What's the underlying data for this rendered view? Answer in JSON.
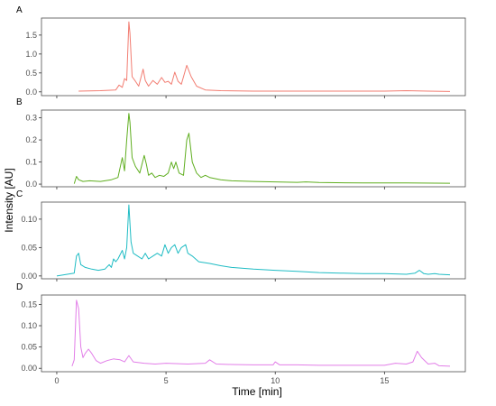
{
  "figure": {
    "ylabel": "Intensity [AU]",
    "xlabel": "Time [min]",
    "colors": {
      "A": "#f27d72",
      "B": "#5fae1f",
      "C": "#1fbcc4",
      "D": "#e27ee8",
      "axis": "#333333",
      "panel_border": "#4d4d4d"
    }
  },
  "chart_data": [
    {
      "type": "line",
      "panel": "A",
      "x_range": [
        0,
        18
      ],
      "ylim": [
        -0.1,
        1.95
      ],
      "yticks": [
        0.0,
        0.5,
        1.0,
        1.5
      ],
      "ytick_labels": [
        "0.0",
        "0.5",
        "1.0",
        "1.5"
      ],
      "grid": false,
      "line_color": "#f27d72",
      "series": [
        {
          "x": [
            1.0,
            2.0,
            2.7,
            2.85,
            3.0,
            3.1,
            3.2,
            3.3,
            3.35,
            3.45,
            3.6,
            3.75,
            3.95,
            4.05,
            4.2,
            4.4,
            4.6,
            4.8,
            4.95,
            5.1,
            5.25,
            5.4,
            5.55,
            5.7,
            5.95,
            6.15,
            6.4,
            6.8,
            7.5,
            9.0,
            11.0,
            13.0,
            15.0,
            16.0,
            17.0,
            18.0
          ],
          "y": [
            0.02,
            0.03,
            0.05,
            0.18,
            0.12,
            0.35,
            0.3,
            1.85,
            1.55,
            0.4,
            0.28,
            0.15,
            0.6,
            0.3,
            0.15,
            0.3,
            0.2,
            0.38,
            0.25,
            0.28,
            0.2,
            0.52,
            0.28,
            0.2,
            0.7,
            0.4,
            0.15,
            0.05,
            0.03,
            0.02,
            0.02,
            0.02,
            0.02,
            0.03,
            0.02,
            0.01
          ]
        }
      ]
    },
    {
      "type": "line",
      "panel": "B",
      "x_range": [
        0,
        18
      ],
      "ylim": [
        -0.012,
        0.335
      ],
      "yticks": [
        0.0,
        0.1,
        0.2,
        0.3
      ],
      "ytick_labels": [
        "0.0",
        "0.1",
        "0.2",
        "0.3"
      ],
      "grid": false,
      "line_color": "#5fae1f",
      "series": [
        {
          "x": [
            0.8,
            0.9,
            1.0,
            1.2,
            1.5,
            2.0,
            2.5,
            2.8,
            3.0,
            3.1,
            3.2,
            3.3,
            3.35,
            3.45,
            3.6,
            3.8,
            4.0,
            4.1,
            4.2,
            4.35,
            4.5,
            4.7,
            4.9,
            5.1,
            5.25,
            5.35,
            5.45,
            5.6,
            5.8,
            5.95,
            6.05,
            6.2,
            6.4,
            6.6,
            6.8,
            7.0,
            7.5,
            8.0,
            9.0,
            10.0,
            11.0,
            11.4,
            12.0,
            14.0,
            16.0,
            18.0
          ],
          "y": [
            0.002,
            0.035,
            0.02,
            0.012,
            0.015,
            0.012,
            0.02,
            0.03,
            0.12,
            0.06,
            0.2,
            0.32,
            0.28,
            0.12,
            0.08,
            0.05,
            0.13,
            0.09,
            0.04,
            0.05,
            0.03,
            0.04,
            0.035,
            0.05,
            0.1,
            0.07,
            0.1,
            0.05,
            0.04,
            0.2,
            0.23,
            0.1,
            0.05,
            0.03,
            0.04,
            0.03,
            0.02,
            0.015,
            0.012,
            0.01,
            0.008,
            0.01,
            0.007,
            0.005,
            0.005,
            0.004
          ]
        }
      ]
    },
    {
      "type": "line",
      "panel": "C",
      "x_range": [
        0,
        18
      ],
      "ylim": [
        -0.005,
        0.13
      ],
      "yticks": [
        0.0,
        0.05,
        0.1
      ],
      "ytick_labels": [
        "0.00",
        "0.05",
        "0.10"
      ],
      "grid": false,
      "line_color": "#1fbcc4",
      "series": [
        {
          "x": [
            0.0,
            0.8,
            0.9,
            1.0,
            1.1,
            1.3,
            1.6,
            1.9,
            2.2,
            2.4,
            2.5,
            2.6,
            2.7,
            2.8,
            3.0,
            3.1,
            3.2,
            3.3,
            3.4,
            3.5,
            3.7,
            3.9,
            4.05,
            4.2,
            4.4,
            4.6,
            4.8,
            4.95,
            5.1,
            5.25,
            5.4,
            5.55,
            5.7,
            5.9,
            6.0,
            6.2,
            6.5,
            7.0,
            7.5,
            8.0,
            9.0,
            10.0,
            11.0,
            12.0,
            13.0,
            14.0,
            15.0,
            16.0,
            16.4,
            16.6,
            16.8,
            17.0,
            17.3,
            17.5,
            18.0
          ],
          "y": [
            0.0,
            0.005,
            0.035,
            0.04,
            0.02,
            0.015,
            0.012,
            0.01,
            0.012,
            0.02,
            0.015,
            0.03,
            0.025,
            0.03,
            0.045,
            0.03,
            0.05,
            0.125,
            0.06,
            0.04,
            0.035,
            0.03,
            0.04,
            0.03,
            0.035,
            0.04,
            0.035,
            0.055,
            0.04,
            0.05,
            0.055,
            0.04,
            0.05,
            0.055,
            0.04,
            0.035,
            0.025,
            0.022,
            0.018,
            0.015,
            0.012,
            0.01,
            0.008,
            0.006,
            0.005,
            0.004,
            0.004,
            0.003,
            0.005,
            0.01,
            0.004,
            0.003,
            0.004,
            0.003,
            0.002
          ]
        }
      ]
    },
    {
      "type": "line",
      "panel": "D",
      "x_range": [
        0,
        18
      ],
      "ylim": [
        -0.008,
        0.172
      ],
      "yticks": [
        0.0,
        0.05,
        0.1,
        0.15
      ],
      "ytick_labels": [
        "0.00",
        "0.05",
        "0.10",
        "0.15"
      ],
      "grid": false,
      "line_color": "#e27ee8",
      "series": [
        {
          "x": [
            0.7,
            0.8,
            0.9,
            1.0,
            1.1,
            1.2,
            1.3,
            1.45,
            1.6,
            1.8,
            2.0,
            2.3,
            2.6,
            2.9,
            3.1,
            3.3,
            3.5,
            4.0,
            4.5,
            5.0,
            6.0,
            6.8,
            7.0,
            7.3,
            8.0,
            9.0,
            9.9,
            10.0,
            10.2,
            11.0,
            12.0,
            13.0,
            14.0,
            15.0,
            15.5,
            16.0,
            16.3,
            16.5,
            16.7,
            17.0,
            17.3,
            17.5,
            18.0
          ],
          "y": [
            0.005,
            0.02,
            0.16,
            0.14,
            0.05,
            0.025,
            0.035,
            0.045,
            0.035,
            0.018,
            0.012,
            0.018,
            0.022,
            0.02,
            0.015,
            0.03,
            0.015,
            0.012,
            0.01,
            0.012,
            0.01,
            0.012,
            0.02,
            0.01,
            0.009,
            0.008,
            0.008,
            0.015,
            0.008,
            0.008,
            0.007,
            0.007,
            0.007,
            0.007,
            0.012,
            0.01,
            0.015,
            0.04,
            0.025,
            0.01,
            0.012,
            0.006,
            0.005
          ]
        }
      ]
    }
  ],
  "x_axis": {
    "ticks": [
      0,
      5,
      10,
      15
    ],
    "tick_labels": [
      "0",
      "5",
      "10",
      "15"
    ]
  }
}
